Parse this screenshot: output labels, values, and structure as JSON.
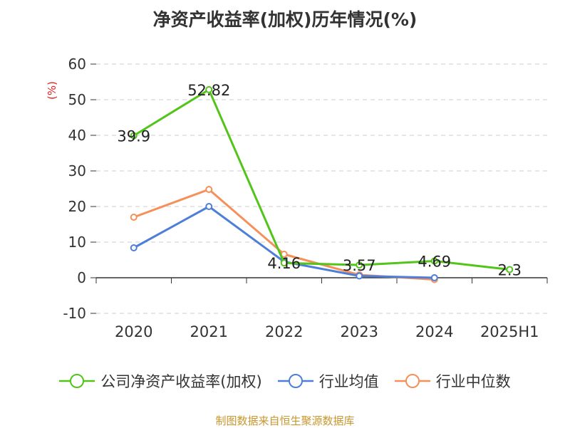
{
  "title": "净资产收益率(加权)历年情况(%)",
  "source_note": "制图数据来自恒生聚源数据库",
  "colors": {
    "company": "#52c41a",
    "industry_avg": "#4d7ed8",
    "industry_median": "#f5905a",
    "unit_label": "#e02020",
    "grid": "#cccccc",
    "axis": "#333333",
    "text": "#333333",
    "source": "#c8962e"
  },
  "chart_data": {
    "type": "line",
    "categories": [
      "2020",
      "2021",
      "2022",
      "2023",
      "2024",
      "2025H1"
    ],
    "ylabel": "(%)",
    "ylim": [
      -10,
      60
    ],
    "yticks": [
      -10,
      0,
      10,
      20,
      30,
      40,
      50,
      60
    ],
    "grid": true,
    "legend_position": "bottom",
    "series": [
      {
        "name": "公司净资产收益率(加权)",
        "color_key": "company",
        "values": [
          39.9,
          52.82,
          4.16,
          3.57,
          4.69,
          2.3
        ],
        "labels": [
          "39.9",
          "52.82",
          "4.16",
          "3.57",
          "4.69",
          "2.3"
        ]
      },
      {
        "name": "行业均值",
        "color_key": "industry_avg",
        "values": [
          8.4,
          20.0,
          4.5,
          0.5,
          0.0,
          null
        ],
        "labels": []
      },
      {
        "name": "行业中位数",
        "color_key": "industry_median",
        "values": [
          17.0,
          24.8,
          6.6,
          0.8,
          -0.5,
          null
        ],
        "labels": []
      }
    ]
  }
}
